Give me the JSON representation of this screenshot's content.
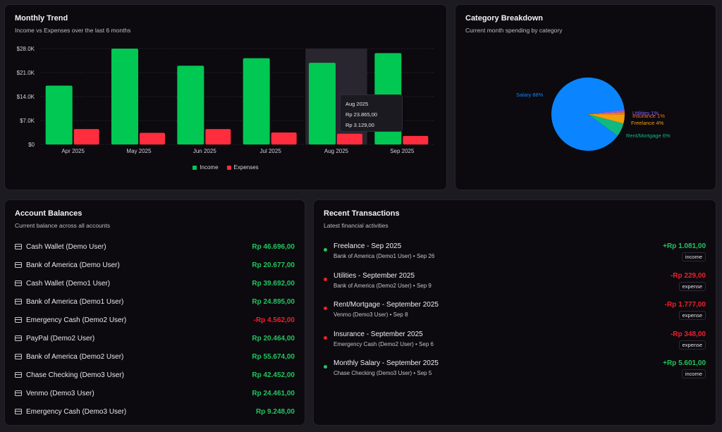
{
  "colors": {
    "income": "#00c853",
    "expense": "#ff2d3d",
    "amount_pos": "#22c55e",
    "amount_neg": "#ef1f2d"
  },
  "trend": {
    "title": "Monthly Trend",
    "subtitle": "Income vs Expenses over the last 6 months",
    "tooltip": {
      "month": "Aug 2025",
      "income": "Rp 23.865,00",
      "expense": "Rp 3.129,00"
    },
    "legend": {
      "income": "Income",
      "expenses": "Expenses"
    }
  },
  "chart_data": {
    "type": "bar",
    "categories": [
      "Apr 2025",
      "May 2025",
      "Jun 2025",
      "Jul 2025",
      "Aug 2025",
      "Sep 2025"
    ],
    "series": [
      {
        "name": "Income",
        "values": [
          17200,
          28000,
          23000,
          25200,
          23865,
          26700
        ]
      },
      {
        "name": "Expenses",
        "values": [
          4500,
          3400,
          4500,
          3500,
          3129,
          2500
        ]
      }
    ],
    "yticks": [
      "$0",
      "$7.0K",
      "$14.0K",
      "$21.0K",
      "$28.0K"
    ],
    "ylim": [
      0,
      28000
    ],
    "highlight_index": 4,
    "grid": true
  },
  "breakdown": {
    "title": "Category Breakdown",
    "subtitle": "Current month spending by category",
    "slices": [
      {
        "label": "Salary 88%",
        "value": 88,
        "color": "#0a84ff"
      },
      {
        "label": "Rent/Mortgage 6%",
        "value": 6,
        "color": "#10b981"
      },
      {
        "label": "Freelance 4%",
        "value": 4,
        "color": "#f59e0b"
      },
      {
        "label": "Insurance 1%",
        "value": 1,
        "color": "#f97316"
      },
      {
        "label": "Utilities 1%",
        "value": 1,
        "color": "#8b5cf6"
      }
    ]
  },
  "accounts": {
    "title": "Account Balances",
    "subtitle": "Current balance across all accounts",
    "items": [
      {
        "name": "Cash Wallet (Demo User)",
        "amount": "Rp 46.696,00",
        "negative": false
      },
      {
        "name": "Bank of America (Demo User)",
        "amount": "Rp 20.677,00",
        "negative": false
      },
      {
        "name": "Cash Wallet (Demo1 User)",
        "amount": "Rp 39.692,00",
        "negative": false
      },
      {
        "name": "Bank of America (Demo1 User)",
        "amount": "Rp 24.895,00",
        "negative": false
      },
      {
        "name": "Emergency Cash (Demo2 User)",
        "amount": "-Rp 4.562,00",
        "negative": true
      },
      {
        "name": "PayPal (Demo2 User)",
        "amount": "Rp 20.464,00",
        "negative": false
      },
      {
        "name": "Bank of America (Demo2 User)",
        "amount": "Rp 55.674,00",
        "negative": false
      },
      {
        "name": "Chase Checking (Demo3 User)",
        "amount": "Rp 42.452,00",
        "negative": false
      },
      {
        "name": "Venmo (Demo3 User)",
        "amount": "Rp 24.461,00",
        "negative": false
      },
      {
        "name": "Emergency Cash (Demo3 User)",
        "amount": "Rp 9.248,00",
        "negative": false
      }
    ]
  },
  "recent": {
    "title": "Recent Transactions",
    "subtitle": "Latest financial activities",
    "items": [
      {
        "title": "Freelance - Sep 2025",
        "meta": "Bank of America (Demo1 User) • Sep 26",
        "amount": "+Rp 1.081,00",
        "type": "income"
      },
      {
        "title": "Utilities - September 2025",
        "meta": "Bank of America (Demo2 User) • Sep 9",
        "amount": "-Rp 229,00",
        "type": "expense"
      },
      {
        "title": "Rent/Mortgage - September 2025",
        "meta": "Venmo (Demo3 User) • Sep 8",
        "amount": "-Rp 1.777,00",
        "type": "expense"
      },
      {
        "title": "Insurance - September 2025",
        "meta": "Emergency Cash (Demo2 User) • Sep 6",
        "amount": "-Rp 348,00",
        "type": "expense"
      },
      {
        "title": "Monthly Salary - September 2025",
        "meta": "Chase Checking (Demo3 User) • Sep 5",
        "amount": "+Rp 5.601,00",
        "type": "income"
      }
    ]
  }
}
